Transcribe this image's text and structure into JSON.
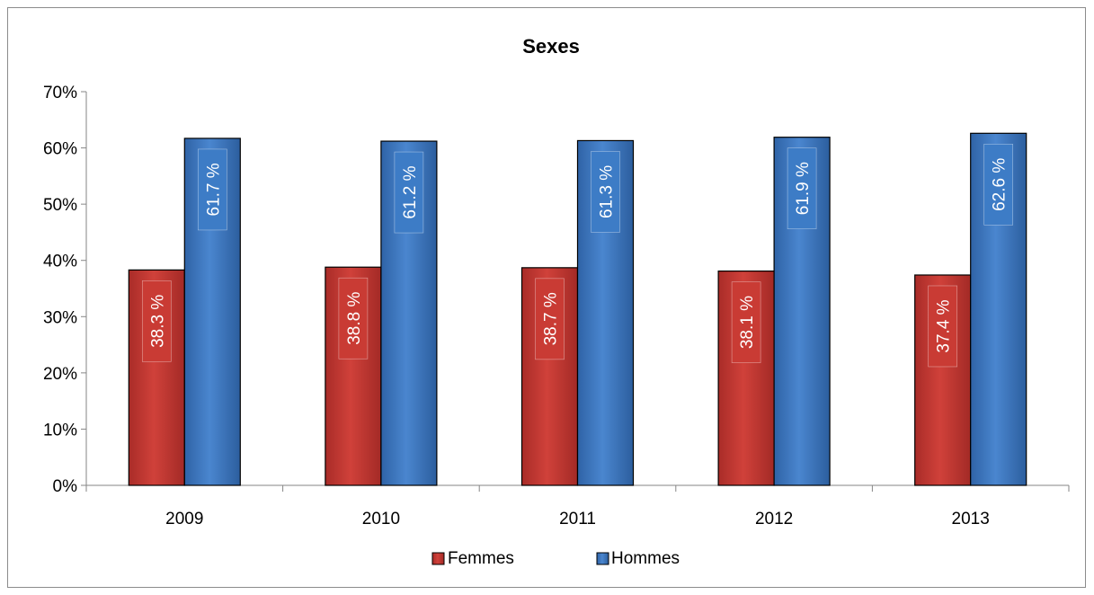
{
  "chart_data": {
    "type": "bar",
    "title": "Sexes",
    "categories": [
      "2009",
      "2010",
      "2011",
      "2012",
      "2013"
    ],
    "series": [
      {
        "name": "Femmes",
        "color": "#c0352f",
        "label_color": "#c93b34",
        "values": [
          38.3,
          38.8,
          38.7,
          38.1,
          37.4
        ],
        "labels": [
          "38.3 %",
          "38.8 %",
          "38.7 %",
          "38.1 %",
          "37.4 %"
        ]
      },
      {
        "name": "Hommes",
        "color": "#3a72b9",
        "label_color": "#3d7cc6",
        "values": [
          61.7,
          61.2,
          61.3,
          61.9,
          62.6
        ],
        "labels": [
          "61.7 %",
          "61.2 %",
          "61.3 %",
          "61.9 %",
          "62.6 %"
        ]
      }
    ],
    "ylim": [
      0,
      70
    ],
    "yticks": [
      "0%",
      "10%",
      "20%",
      "30%",
      "40%",
      "50%",
      "60%",
      "70%"
    ],
    "grid": false,
    "legend_position": "bottom"
  }
}
